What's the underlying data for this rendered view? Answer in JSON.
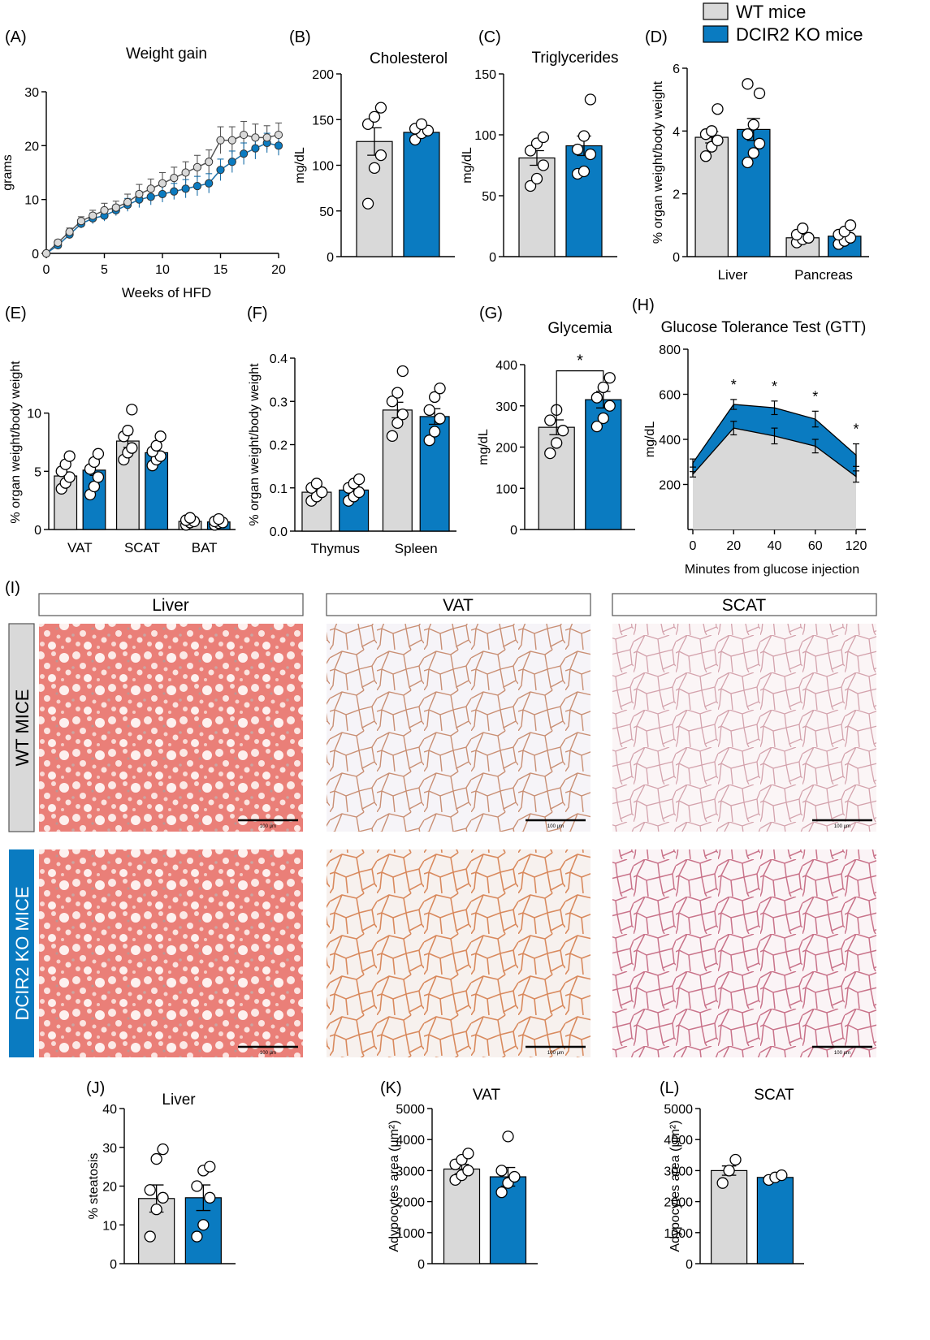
{
  "legend": [
    {
      "label": "WT mice",
      "color": "#d9d9d9"
    },
    {
      "label": "DCIR2 KO mice",
      "color": "#0a7bc1"
    }
  ],
  "colors": {
    "wt": "#d9d9d9",
    "ko": "#0a7bc1",
    "wt_line": "#555555",
    "ko_line": "#1a6fa8"
  },
  "histology": {
    "panel_letter": "(I)",
    "columns": [
      "Liver",
      "VAT",
      "SCAT"
    ],
    "rows": [
      "WT MICE",
      "DCIR2 KO MICE"
    ],
    "scale_bar": "100 μm"
  },
  "chart_data": [
    {
      "id": "A",
      "panel_letter": "(A)",
      "type": "line",
      "title": "Weight gain",
      "xlabel": "Weeks of HFD",
      "ylabel": "grams",
      "xlim": [
        0,
        20
      ],
      "ylim": [
        0,
        30
      ],
      "x_ticks": [
        0,
        5,
        10,
        15,
        20
      ],
      "y_ticks": [
        0,
        10,
        20,
        30
      ],
      "x": [
        0,
        1,
        2,
        3,
        4,
        5,
        6,
        7,
        8,
        9,
        10,
        11,
        12,
        13,
        14,
        15,
        16,
        17,
        18,
        19,
        20
      ],
      "series": [
        {
          "group": "wt",
          "values": [
            0,
            2,
            4,
            6,
            7,
            8,
            8.5,
            9.5,
            11,
            12,
            13,
            14,
            15,
            16,
            17,
            21,
            21,
            22,
            21.5,
            21.5,
            22
          ],
          "error": [
            0.3,
            0.5,
            0.7,
            0.8,
            1,
            1.3,
            1.2,
            1.5,
            1.8,
            1.8,
            2,
            2,
            2,
            2.2,
            2.2,
            2.5,
            2.5,
            2.5,
            2.5,
            2.2,
            2.2
          ]
        },
        {
          "group": "ko",
          "values": [
            0,
            1.5,
            3.5,
            5.5,
            6.5,
            7,
            8,
            9,
            10,
            10.5,
            11,
            11.5,
            12,
            12.5,
            13,
            15.5,
            17,
            18.5,
            19.5,
            20.5,
            20
          ],
          "error": [
            0.3,
            0.5,
            0.7,
            0.8,
            1,
            1,
            1,
            1.2,
            1.5,
            1.5,
            1.5,
            1.5,
            1.7,
            1.8,
            1.8,
            2,
            2,
            2,
            2,
            1.8,
            1.8
          ]
        }
      ]
    },
    {
      "id": "B",
      "panel_letter": "(B)",
      "type": "bar",
      "title": "Cholesterol",
      "ylabel": "mg/dL",
      "ylim": [
        0,
        200
      ],
      "y_ticks": [
        0,
        50,
        100,
        150,
        200
      ],
      "categories": [
        ""
      ],
      "series": [
        {
          "group": "wt",
          "values": [
            126
          ],
          "error": [
            15
          ],
          "points": [
            [
              58,
              97,
              111,
              145,
              153,
              163
            ]
          ]
        },
        {
          "group": "ko",
          "values": [
            136
          ],
          "error": [
            4
          ],
          "points": [
            [
              128,
              135,
              138,
              140,
              145
            ]
          ]
        }
      ]
    },
    {
      "id": "C",
      "panel_letter": "(C)",
      "type": "bar",
      "title": "Triglycerides",
      "ylabel": "mg/dL",
      "ylim": [
        0,
        150
      ],
      "y_ticks": [
        0,
        50,
        100,
        150
      ],
      "categories": [
        ""
      ],
      "series": [
        {
          "group": "wt",
          "values": [
            81
          ],
          "error": [
            6
          ],
          "points": [
            [
              58,
              64,
              75,
              87,
              93,
              98
            ]
          ]
        },
        {
          "group": "ko",
          "values": [
            91
          ],
          "error": [
            8
          ],
          "points": [
            [
              68,
              70,
              84,
              88,
              99,
              129
            ]
          ]
        }
      ]
    },
    {
      "id": "D",
      "panel_letter": "(D)",
      "type": "bar",
      "ylabel": "% organ weight/body weight",
      "ylim": [
        0,
        6
      ],
      "y_ticks": [
        0,
        2,
        4,
        6
      ],
      "categories": [
        "Liver",
        "Pancreas"
      ],
      "series": [
        {
          "group": "wt",
          "values": [
            3.8,
            0.6
          ],
          "error": [
            0.18,
            0.08
          ],
          "points": [
            [
              3.2,
              3.5,
              3.7,
              3.9,
              4.0,
              4.7
            ],
            [
              0.45,
              0.55,
              0.6,
              0.7,
              0.9
            ]
          ]
        },
        {
          "group": "ko",
          "values": [
            4.05,
            0.65
          ],
          "error": [
            0.35,
            0.08
          ],
          "points": [
            [
              3.0,
              3.3,
              3.6,
              3.9,
              4.2,
              5.2,
              5.5
            ],
            [
              0.4,
              0.5,
              0.6,
              0.7,
              0.8,
              1.0
            ]
          ]
        }
      ]
    },
    {
      "id": "E",
      "panel_letter": "(E)",
      "type": "bar",
      "ylabel": "% organ weight/body weight",
      "ylim": [
        0,
        15
      ],
      "y_ticks": [
        0,
        5,
        10
      ],
      "categories": [
        "VAT",
        "SCAT",
        "BAT"
      ],
      "series": [
        {
          "group": "wt",
          "values": [
            4.6,
            7.6,
            0.7
          ],
          "error": [
            0.35,
            0.55,
            0.1
          ],
          "points": [
            [
              3.5,
              4.0,
              4.5,
              5.0,
              5.6,
              6.3
            ],
            [
              6.0,
              6.6,
              7.0,
              8.0,
              8.5,
              10.3
            ],
            [
              0.4,
              0.6,
              0.7,
              0.8,
              1.0
            ]
          ]
        },
        {
          "group": "ko",
          "values": [
            5.1,
            6.6,
            0.65
          ],
          "error": [
            0.45,
            0.35,
            0.08
          ],
          "points": [
            [
              3.0,
              3.7,
              4.5,
              5.2,
              5.8,
              6.5
            ],
            [
              5.5,
              6.0,
              6.3,
              6.7,
              7.2,
              8.0
            ],
            [
              0.4,
              0.55,
              0.6,
              0.7,
              0.9
            ]
          ]
        }
      ]
    },
    {
      "id": "F",
      "panel_letter": "(F)",
      "type": "bar",
      "ylabel": "% organ weight/body weight",
      "ylim": [
        0,
        0.4
      ],
      "y_ticks": [
        0.0,
        0.1,
        0.2,
        0.3,
        0.4
      ],
      "categories": [
        "Thymus",
        "Spleen"
      ],
      "series": [
        {
          "group": "wt",
          "values": [
            0.09,
            0.28
          ],
          "error": [
            0.008,
            0.018
          ],
          "points": [
            [
              0.07,
              0.08,
              0.09,
              0.1,
              0.11
            ],
            [
              0.22,
              0.25,
              0.27,
              0.3,
              0.32,
              0.37
            ]
          ]
        },
        {
          "group": "ko",
          "values": [
            0.095,
            0.265
          ],
          "error": [
            0.01,
            0.018
          ],
          "points": [
            [
              0.07,
              0.08,
              0.09,
              0.1,
              0.11,
              0.12
            ],
            [
              0.21,
              0.23,
              0.26,
              0.28,
              0.31,
              0.33
            ]
          ]
        }
      ]
    },
    {
      "id": "G",
      "panel_letter": "(G)",
      "type": "bar",
      "title": "Glycemia",
      "ylabel": "mg/dL",
      "ylim": [
        0,
        400
      ],
      "y_ticks": [
        0,
        100,
        200,
        300,
        400
      ],
      "categories": [
        ""
      ],
      "significance": "*",
      "series": [
        {
          "group": "wt",
          "values": [
            248
          ],
          "error": [
            18
          ],
          "points": [
            [
              185,
              210,
              240,
              265,
              290
            ]
          ]
        },
        {
          "group": "ko",
          "values": [
            315
          ],
          "error": [
            20
          ],
          "points": [
            [
              250,
              270,
              300,
              320,
              345,
              368
            ]
          ]
        }
      ]
    },
    {
      "id": "H",
      "panel_letter": "(H)",
      "type": "area",
      "title": "Glucose Tolerance Test (GTT)",
      "xlabel": "Minutes from glucose injection",
      "ylabel": "mg/dL",
      "ylim": [
        0,
        800
      ],
      "y_ticks": [
        200,
        400,
        600,
        800
      ],
      "x_ticks": [
        0,
        20,
        40,
        60,
        120
      ],
      "significance": [
        "*",
        "*",
        "*",
        "*"
      ],
      "series": [
        {
          "group": "wt",
          "values": [
            245,
            450,
            415,
            370,
            235
          ],
          "error": [
            12,
            30,
            35,
            30,
            25
          ]
        },
        {
          "group": "ko",
          "values": [
            295,
            555,
            540,
            490,
            330
          ],
          "error": [
            18,
            22,
            30,
            35,
            50
          ]
        }
      ]
    },
    {
      "id": "J",
      "panel_letter": "(J)",
      "type": "bar",
      "title": "Liver",
      "ylabel": "% steatosis",
      "ylim": [
        0,
        40
      ],
      "y_ticks": [
        0,
        10,
        20,
        30,
        40
      ],
      "categories": [
        ""
      ],
      "series": [
        {
          "group": "wt",
          "values": [
            16.8
          ],
          "error": [
            3.5
          ],
          "points": [
            [
              7,
              14,
              17,
              19,
              27,
              29.5
            ]
          ]
        },
        {
          "group": "ko",
          "values": [
            17
          ],
          "error": [
            3.3
          ],
          "points": [
            [
              7,
              10,
              17,
              20,
              24,
              25
            ]
          ]
        }
      ]
    },
    {
      "id": "K",
      "panel_letter": "(K)",
      "type": "bar",
      "title": "VAT",
      "ylabel": "Adypocytes area (μm²)",
      "ylim": [
        0,
        5000
      ],
      "y_ticks": [
        0,
        1000,
        2000,
        3000,
        4000,
        5000
      ],
      "categories": [
        ""
      ],
      "series": [
        {
          "group": "wt",
          "values": [
            3050
          ],
          "error": [
            150
          ],
          "points": [
            [
              2700,
              2850,
              3000,
              3200,
              3350,
              3550
            ]
          ]
        },
        {
          "group": "ko",
          "values": [
            2800
          ],
          "error": [
            300
          ],
          "points": [
            [
              2300,
              2600,
              2800,
              3000,
              4100
            ]
          ]
        }
      ]
    },
    {
      "id": "L",
      "panel_letter": "(L)",
      "type": "bar",
      "title": "SCAT",
      "ylabel": "Adypocytes area (μm²)",
      "ylim": [
        0,
        5000
      ],
      "y_ticks": [
        0,
        1000,
        2000,
        3000,
        4000,
        5000
      ],
      "categories": [
        ""
      ],
      "series": [
        {
          "group": "wt",
          "values": [
            3000
          ],
          "error": [
            150
          ],
          "points": [
            [
              2600,
              3000,
              3350
            ]
          ]
        },
        {
          "group": "ko",
          "values": [
            2780
          ],
          "error": [
            40
          ],
          "points": [
            [
              2700,
              2780,
              2850
            ]
          ]
        }
      ]
    }
  ]
}
